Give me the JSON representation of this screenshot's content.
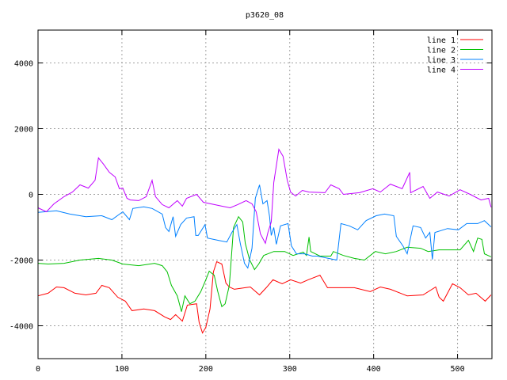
{
  "chart_data": {
    "type": "line",
    "title": "p3620_08",
    "xlabel": "",
    "ylabel": "",
    "xlim": [
      0,
      541
    ],
    "ylim": [
      -5000,
      5000
    ],
    "xticks": [
      0,
      100,
      200,
      300,
      400,
      500
    ],
    "yticks": [
      -4000,
      -2000,
      0,
      2000,
      4000
    ],
    "xtick_labels": [
      "0",
      "100",
      "200",
      "300",
      "400",
      "500"
    ],
    "ytick_labels": [
      "-4000",
      "-2000",
      "0",
      "2000",
      "4000"
    ],
    "grid": true,
    "legend_position": "top-right",
    "series": [
      {
        "name": "line 1",
        "color": "#ff0000",
        "points": [
          [
            0,
            -3090
          ],
          [
            12,
            -3010
          ],
          [
            22,
            -2820
          ],
          [
            31,
            -2840
          ],
          [
            44,
            -3010
          ],
          [
            57,
            -3060
          ],
          [
            69,
            -3010
          ],
          [
            76,
            -2770
          ],
          [
            85,
            -2840
          ],
          [
            95,
            -3130
          ],
          [
            104,
            -3250
          ],
          [
            112,
            -3540
          ],
          [
            126,
            -3490
          ],
          [
            139,
            -3540
          ],
          [
            151,
            -3730
          ],
          [
            158,
            -3810
          ],
          [
            164,
            -3660
          ],
          [
            172,
            -3860
          ],
          [
            178,
            -3370
          ],
          [
            189,
            -3330
          ],
          [
            192,
            -3900
          ],
          [
            196,
            -4220
          ],
          [
            200,
            -4050
          ],
          [
            205,
            -3490
          ],
          [
            209,
            -2360
          ],
          [
            213,
            -2050
          ],
          [
            219,
            -2120
          ],
          [
            224,
            -2700
          ],
          [
            228,
            -2820
          ],
          [
            234,
            -2890
          ],
          [
            247,
            -2840
          ],
          [
            253,
            -2820
          ],
          [
            264,
            -3060
          ],
          [
            272,
            -2840
          ],
          [
            280,
            -2600
          ],
          [
            291,
            -2720
          ],
          [
            301,
            -2600
          ],
          [
            313,
            -2700
          ],
          [
            322,
            -2600
          ],
          [
            336,
            -2460
          ],
          [
            345,
            -2840
          ],
          [
            361,
            -2840
          ],
          [
            377,
            -2840
          ],
          [
            396,
            -2960
          ],
          [
            408,
            -2820
          ],
          [
            420,
            -2890
          ],
          [
            440,
            -3090
          ],
          [
            459,
            -3060
          ],
          [
            474,
            -2820
          ],
          [
            478,
            -3130
          ],
          [
            483,
            -3250
          ],
          [
            494,
            -2720
          ],
          [
            503,
            -2840
          ],
          [
            513,
            -3060
          ],
          [
            522,
            -3010
          ],
          [
            533,
            -3250
          ],
          [
            540,
            -3060
          ]
        ]
      },
      {
        "name": "line 2",
        "color": "#00c000",
        "points": [
          [
            0,
            -2100
          ],
          [
            12,
            -2120
          ],
          [
            31,
            -2100
          ],
          [
            50,
            -2000
          ],
          [
            72,
            -1950
          ],
          [
            88,
            -2000
          ],
          [
            101,
            -2120
          ],
          [
            120,
            -2170
          ],
          [
            139,
            -2100
          ],
          [
            148,
            -2170
          ],
          [
            154,
            -2360
          ],
          [
            159,
            -2770
          ],
          [
            166,
            -3090
          ],
          [
            171,
            -3570
          ],
          [
            175,
            -3090
          ],
          [
            181,
            -3330
          ],
          [
            187,
            -3250
          ],
          [
            194,
            -2960
          ],
          [
            200,
            -2600
          ],
          [
            204,
            -2340
          ],
          [
            210,
            -2460
          ],
          [
            214,
            -2940
          ],
          [
            219,
            -3420
          ],
          [
            223,
            -3330
          ],
          [
            228,
            -2770
          ],
          [
            233,
            -1010
          ],
          [
            239,
            -680
          ],
          [
            244,
            -840
          ],
          [
            247,
            -1490
          ],
          [
            252,
            -1980
          ],
          [
            258,
            -2290
          ],
          [
            263,
            -2120
          ],
          [
            269,
            -1860
          ],
          [
            281,
            -1740
          ],
          [
            294,
            -1740
          ],
          [
            304,
            -1860
          ],
          [
            316,
            -1760
          ],
          [
            320,
            -1860
          ],
          [
            323,
            -1300
          ],
          [
            325,
            -1740
          ],
          [
            336,
            -1880
          ],
          [
            349,
            -1880
          ],
          [
            352,
            -1740
          ],
          [
            364,
            -1860
          ],
          [
            377,
            -1950
          ],
          [
            389,
            -2000
          ],
          [
            402,
            -1740
          ],
          [
            414,
            -1810
          ],
          [
            427,
            -1740
          ],
          [
            440,
            -1610
          ],
          [
            456,
            -1640
          ],
          [
            465,
            -1740
          ],
          [
            478,
            -1690
          ],
          [
            491,
            -1690
          ],
          [
            503,
            -1690
          ],
          [
            513,
            -1400
          ],
          [
            519,
            -1740
          ],
          [
            524,
            -1330
          ],
          [
            529,
            -1370
          ],
          [
            532,
            -1810
          ],
          [
            540,
            -1900
          ]
        ]
      },
      {
        "name": "line 3",
        "color": "#0080ff",
        "points": [
          [
            0,
            -550
          ],
          [
            22,
            -500
          ],
          [
            38,
            -600
          ],
          [
            57,
            -680
          ],
          [
            76,
            -650
          ],
          [
            88,
            -770
          ],
          [
            101,
            -530
          ],
          [
            109,
            -770
          ],
          [
            113,
            -430
          ],
          [
            126,
            -380
          ],
          [
            136,
            -430
          ],
          [
            148,
            -600
          ],
          [
            152,
            -1010
          ],
          [
            156,
            -1130
          ],
          [
            161,
            -680
          ],
          [
            164,
            -1280
          ],
          [
            170,
            -920
          ],
          [
            177,
            -720
          ],
          [
            186,
            -680
          ],
          [
            188,
            -1250
          ],
          [
            191,
            -1250
          ],
          [
            199,
            -920
          ],
          [
            202,
            -1330
          ],
          [
            215,
            -1400
          ],
          [
            225,
            -1450
          ],
          [
            231,
            -1160
          ],
          [
            237,
            -920
          ],
          [
            241,
            -1490
          ],
          [
            246,
            -2100
          ],
          [
            250,
            -2240
          ],
          [
            255,
            -1640
          ],
          [
            259,
            -120
          ],
          [
            264,
            290
          ],
          [
            268,
            -290
          ],
          [
            273,
            -190
          ],
          [
            276,
            -680
          ],
          [
            278,
            -1250
          ],
          [
            281,
            -1010
          ],
          [
            284,
            -1520
          ],
          [
            289,
            -960
          ],
          [
            298,
            -890
          ],
          [
            302,
            -1570
          ],
          [
            308,
            -1810
          ],
          [
            318,
            -1810
          ],
          [
            327,
            -1880
          ],
          [
            333,
            -1880
          ],
          [
            356,
            -2000
          ],
          [
            361,
            -890
          ],
          [
            371,
            -960
          ],
          [
            381,
            -1080
          ],
          [
            391,
            -800
          ],
          [
            403,
            -650
          ],
          [
            413,
            -600
          ],
          [
            424,
            -650
          ],
          [
            427,
            -1280
          ],
          [
            435,
            -1570
          ],
          [
            440,
            -1810
          ],
          [
            447,
            -960
          ],
          [
            456,
            -1010
          ],
          [
            462,
            -1330
          ],
          [
            467,
            -1160
          ],
          [
            470,
            -1980
          ],
          [
            473,
            -1160
          ],
          [
            488,
            -1040
          ],
          [
            501,
            -1080
          ],
          [
            511,
            -890
          ],
          [
            524,
            -890
          ],
          [
            532,
            -800
          ],
          [
            540,
            -990
          ]
        ]
      },
      {
        "name": "line 4",
        "color": "#c000ff",
        "points": [
          [
            0,
            -410
          ],
          [
            10,
            -530
          ],
          [
            19,
            -290
          ],
          [
            31,
            -70
          ],
          [
            41,
            70
          ],
          [
            50,
            290
          ],
          [
            60,
            190
          ],
          [
            68,
            430
          ],
          [
            72,
            1110
          ],
          [
            78,
            920
          ],
          [
            85,
            670
          ],
          [
            92,
            530
          ],
          [
            97,
            170
          ],
          [
            101,
            190
          ],
          [
            106,
            -120
          ],
          [
            110,
            -170
          ],
          [
            120,
            -190
          ],
          [
            129,
            -70
          ],
          [
            136,
            430
          ],
          [
            140,
            -70
          ],
          [
            148,
            -310
          ],
          [
            156,
            -410
          ],
          [
            166,
            -190
          ],
          [
            172,
            -360
          ],
          [
            177,
            -120
          ],
          [
            189,
            0
          ],
          [
            197,
            -240
          ],
          [
            210,
            -310
          ],
          [
            219,
            -360
          ],
          [
            229,
            -410
          ],
          [
            238,
            -310
          ],
          [
            248,
            -190
          ],
          [
            255,
            -290
          ],
          [
            260,
            -530
          ],
          [
            265,
            -1200
          ],
          [
            271,
            -1490
          ],
          [
            274,
            -1160
          ],
          [
            278,
            -840
          ],
          [
            281,
            360
          ],
          [
            287,
            1370
          ],
          [
            292,
            1160
          ],
          [
            297,
            430
          ],
          [
            301,
            70
          ],
          [
            307,
            -50
          ],
          [
            315,
            120
          ],
          [
            323,
            70
          ],
          [
            342,
            50
          ],
          [
            349,
            290
          ],
          [
            359,
            170
          ],
          [
            364,
            0
          ],
          [
            383,
            50
          ],
          [
            399,
            170
          ],
          [
            408,
            70
          ],
          [
            420,
            310
          ],
          [
            434,
            170
          ],
          [
            443,
            670
          ],
          [
            444,
            50
          ],
          [
            459,
            240
          ],
          [
            467,
            -120
          ],
          [
            476,
            70
          ],
          [
            490,
            -50
          ],
          [
            503,
            140
          ],
          [
            515,
            0
          ],
          [
            528,
            -170
          ],
          [
            537,
            -120
          ],
          [
            540,
            -390
          ]
        ]
      }
    ]
  }
}
